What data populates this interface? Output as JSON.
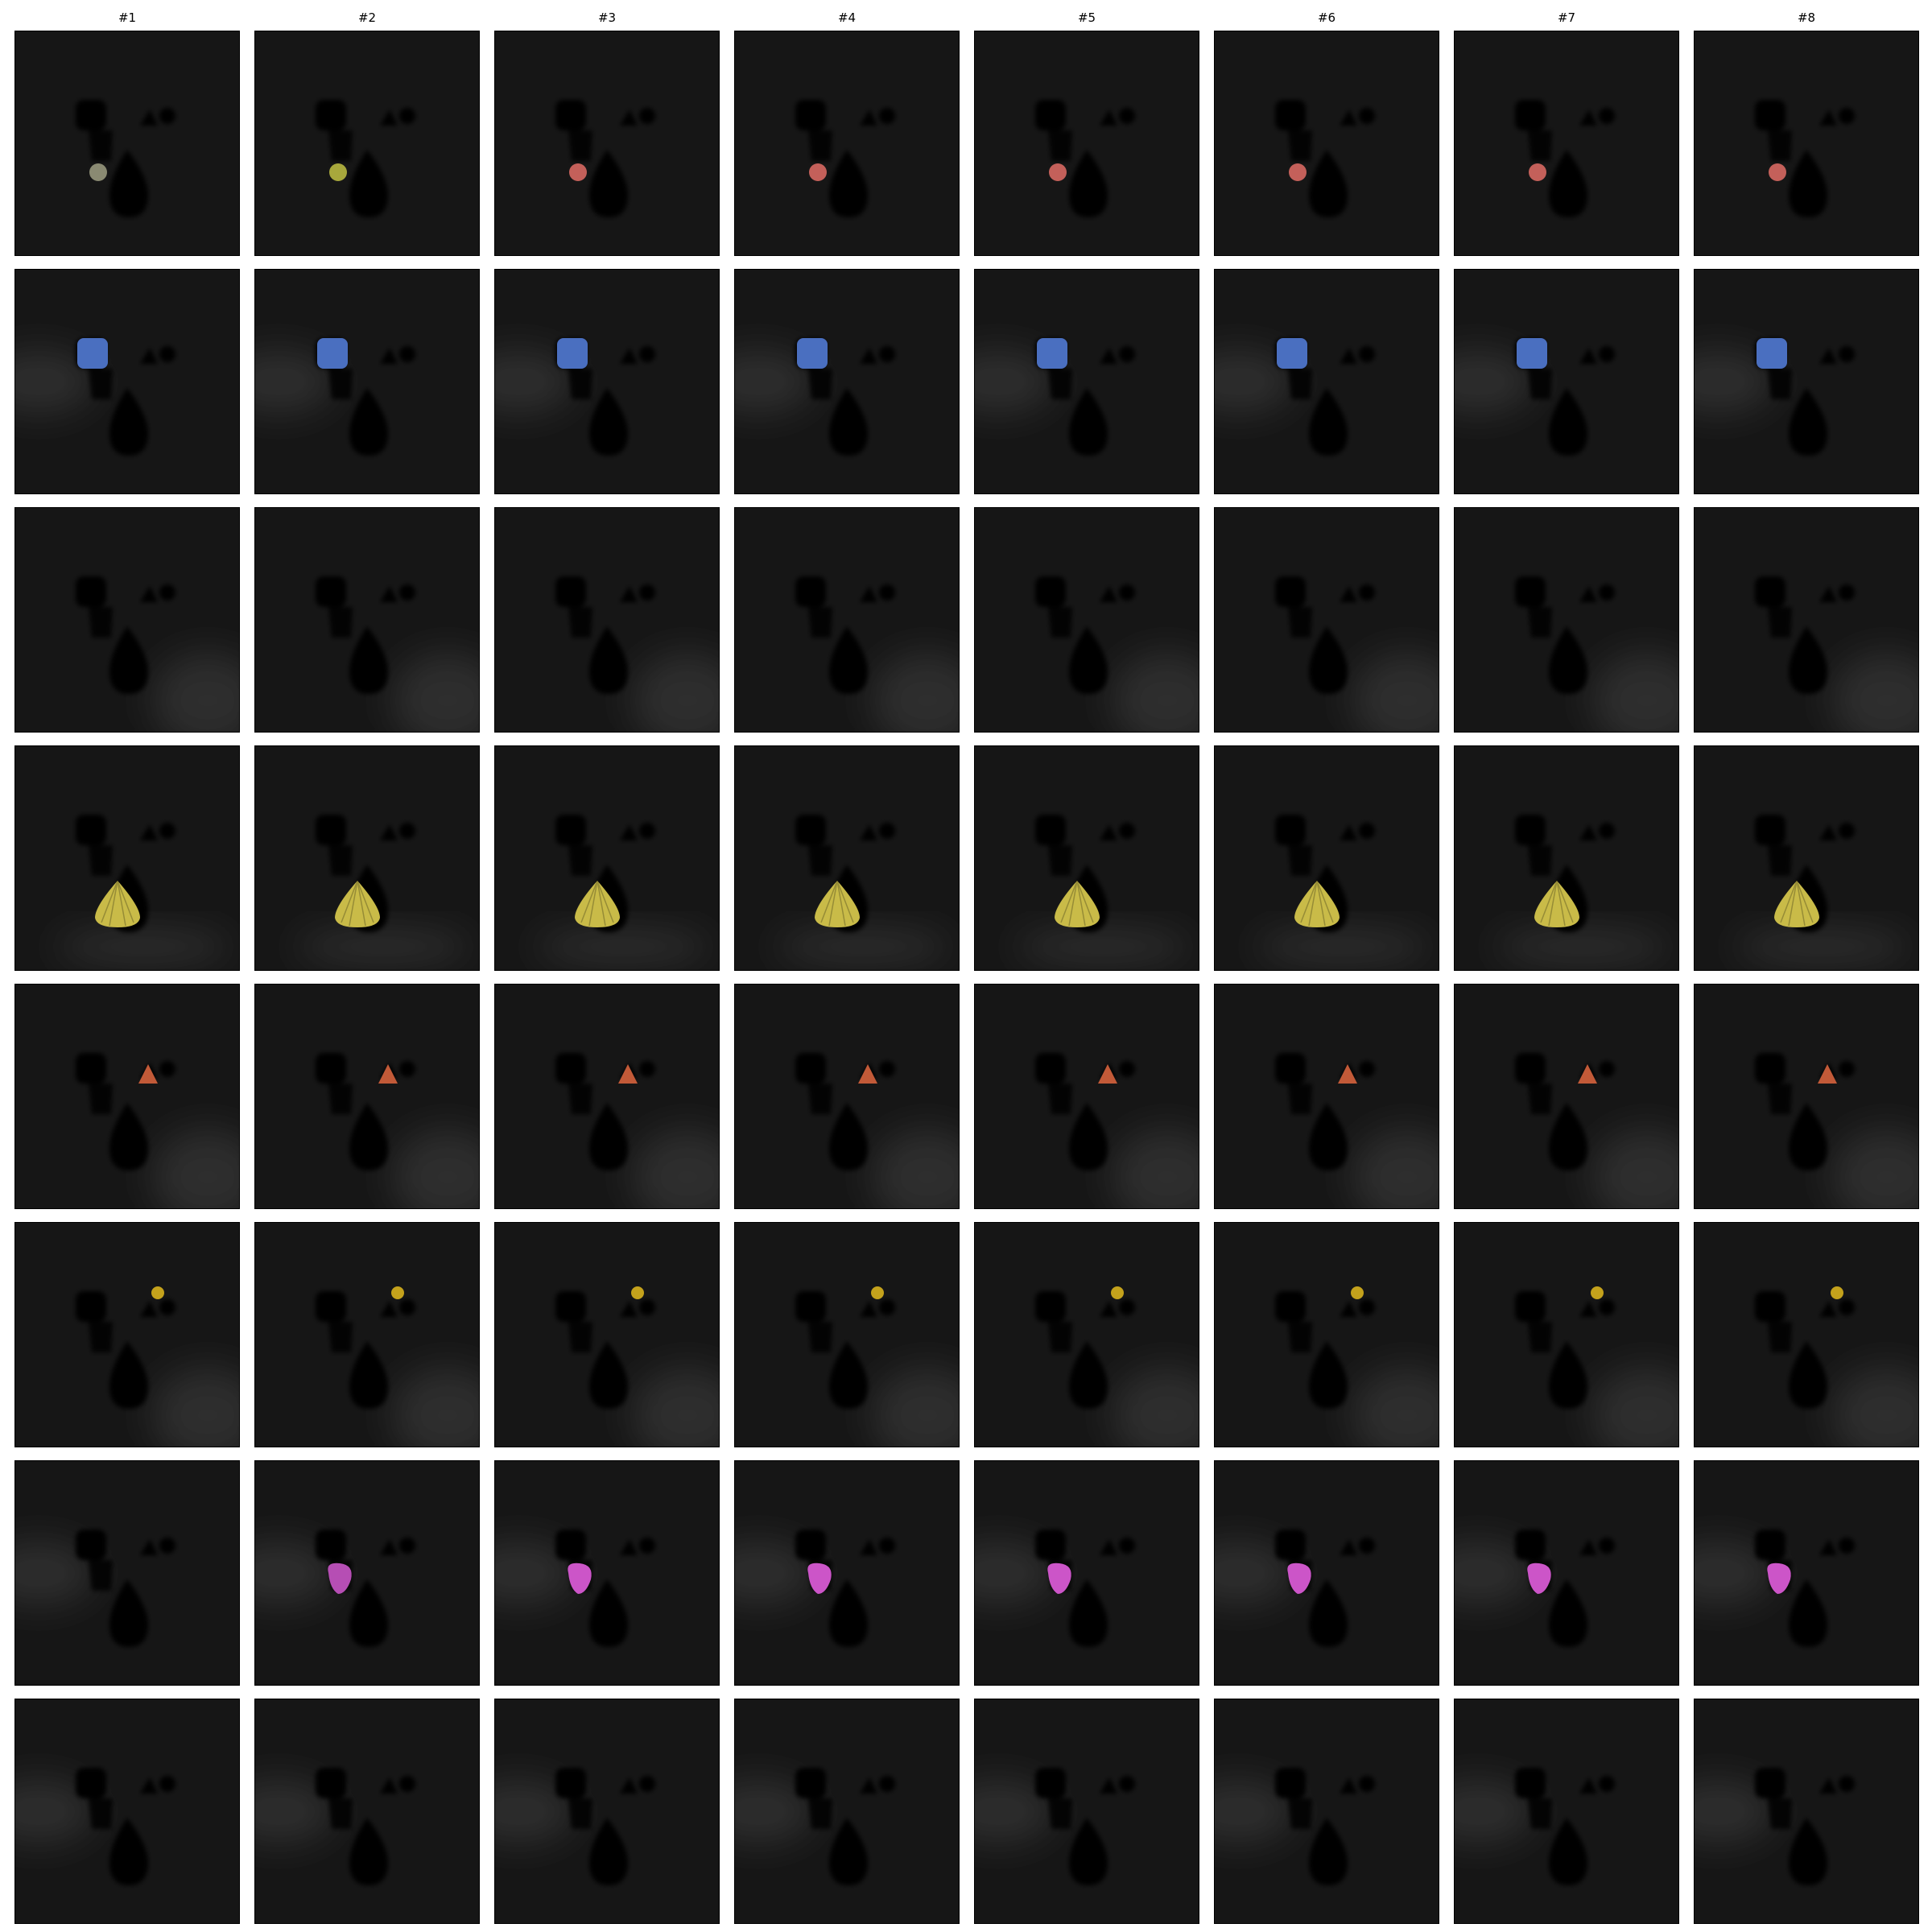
{
  "columns": [
    {
      "label": "#1"
    },
    {
      "label": "#2"
    },
    {
      "label": "#3"
    },
    {
      "label": "#4"
    },
    {
      "label": "#5"
    },
    {
      "label": "#6"
    },
    {
      "label": "#7"
    },
    {
      "label": "#8"
    }
  ],
  "rows": [
    {
      "object": "small-sphere",
      "color": "#c4605a",
      "first_color": "#8a8a72",
      "second_color": "#a8a83c",
      "glow": "none"
    },
    {
      "object": "cube",
      "color": "#4a6fc0",
      "first_color": "#4a6fc0",
      "second_color": "#4a6fc0",
      "glow": "left"
    },
    {
      "object": "none",
      "color": "#000000",
      "first_color": "#000000",
      "second_color": "#000000",
      "glow": "bottom-right"
    },
    {
      "object": "large-cone",
      "color": "#c9bb48",
      "first_color": "#c9bb48",
      "second_color": "#c9bb48",
      "glow": "bottom"
    },
    {
      "object": "small-cone",
      "color": "#c25a38",
      "first_color": "#c25a38",
      "second_color": "#c25a38",
      "glow": "bottom-right"
    },
    {
      "object": "small-ball",
      "color": "#c4a21c",
      "first_color": "#c4a21c",
      "second_color": "#c4a21c",
      "glow": "bottom-right"
    },
    {
      "object": "round-blob",
      "color": "#cc55c8",
      "first_color": "#000000",
      "second_color": "#b64eb4",
      "glow": "left"
    },
    {
      "object": "none",
      "color": "#000000",
      "first_color": "#000000",
      "second_color": "#000000",
      "glow": "left"
    }
  ],
  "colors": {
    "background": "#ffffff",
    "tile": "#161616",
    "shadow": "#000000",
    "glow": "#5a5a5a"
  }
}
